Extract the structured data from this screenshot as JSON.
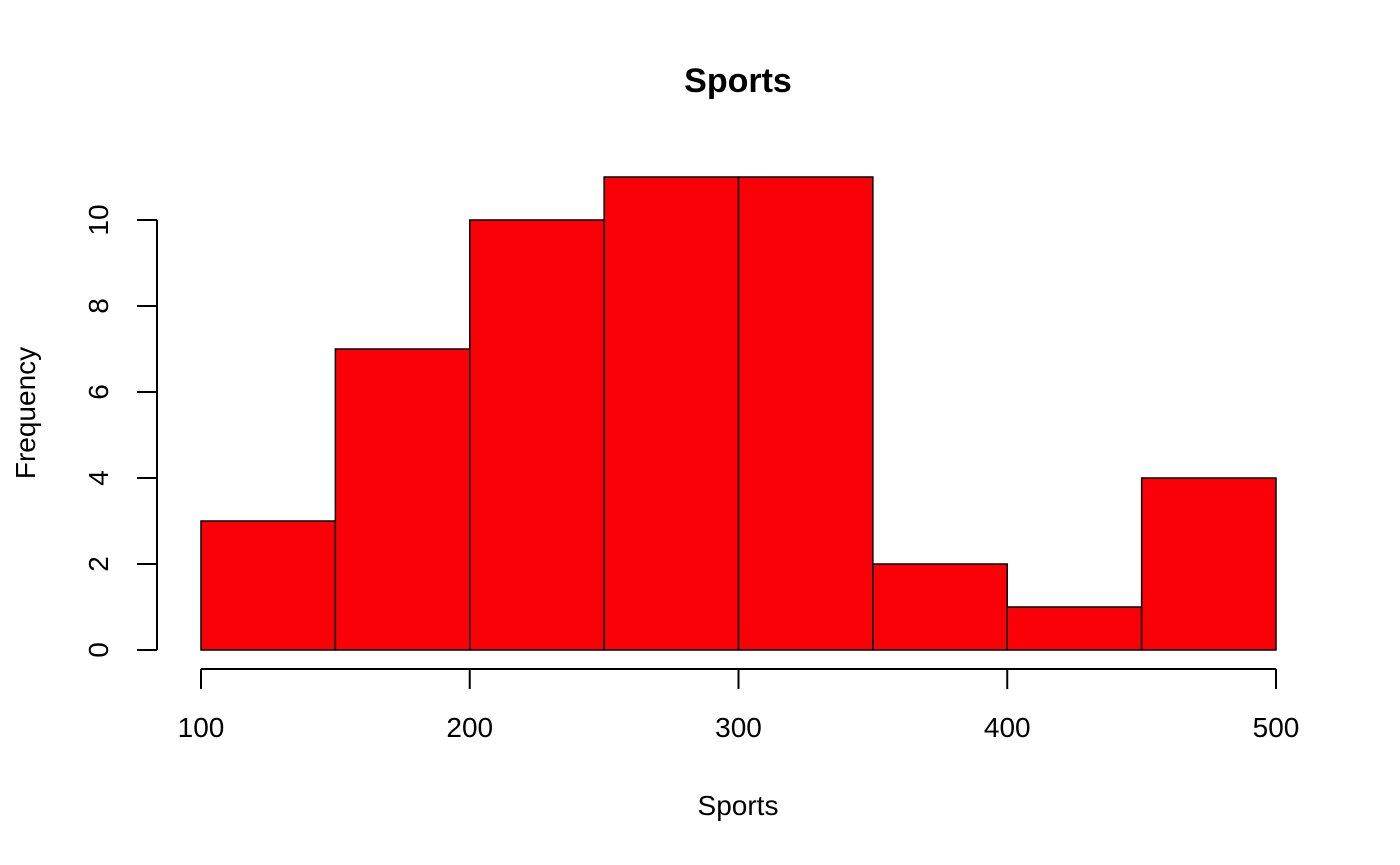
{
  "chart_data": {
    "type": "bar",
    "title": "Sports",
    "xlabel": "Sports",
    "ylabel": "Frequency",
    "bins": [
      {
        "start": 100,
        "end": 150,
        "count": 3
      },
      {
        "start": 150,
        "end": 200,
        "count": 7
      },
      {
        "start": 200,
        "end": 250,
        "count": 10
      },
      {
        "start": 250,
        "end": 300,
        "count": 11
      },
      {
        "start": 300,
        "end": 350,
        "count": 11
      },
      {
        "start": 350,
        "end": 400,
        "count": 2
      },
      {
        "start": 400,
        "end": 450,
        "count": 1
      },
      {
        "start": 450,
        "end": 500,
        "count": 4
      }
    ],
    "xlim": [
      100,
      500
    ],
    "ylim": [
      0,
      11
    ],
    "xticks": [
      "100",
      "200",
      "300",
      "400",
      "500"
    ],
    "yticks": [
      "0",
      "2",
      "4",
      "6",
      "8",
      "10"
    ],
    "grid": false,
    "colors": {
      "bar_fill": "#fa0007",
      "bar_border": "#000000"
    }
  }
}
